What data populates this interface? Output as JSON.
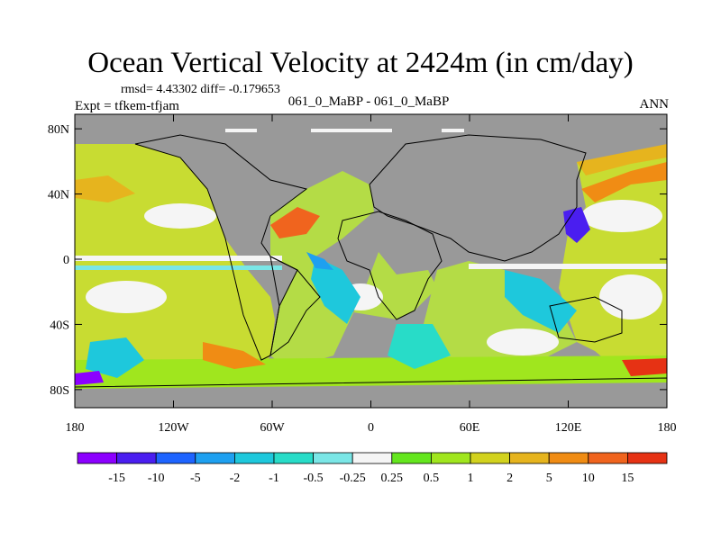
{
  "title": "Ocean Vertical Velocity at 2424m (in cm/day)",
  "stats": "rmsd= 4.43302 diff= -0.179653",
  "experiment": "Expt = tfkem-tfjam",
  "case_diff": "061_0_MaBP - 061_0_MaBP",
  "season": "ANN",
  "map": {
    "projection": "cylindrical equidistant",
    "land_color": "#999999",
    "lon_ticks": [
      "180",
      "120W",
      "60W",
      "0",
      "60E",
      "120E",
      "180"
    ],
    "lat_ticks": [
      "80N",
      "40N",
      "0",
      "40S",
      "80S"
    ]
  },
  "colorbar": {
    "labels": [
      "-15",
      "-10",
      "-5",
      "-2",
      "-1",
      "-0.5",
      "-0.25",
      "0.25",
      "0.5",
      "1",
      "2",
      "5",
      "10",
      "15"
    ],
    "colors": [
      "#8c00ff",
      "#4a1ef0",
      "#1e64ff",
      "#1ea0f0",
      "#1ec8dc",
      "#28dcc8",
      "#7ae6e6",
      "#f5f5f5",
      "#64e61e",
      "#a0e61e",
      "#d2d21e",
      "#e6b41e",
      "#f08c14",
      "#f0641e",
      "#e63214"
    ]
  }
}
